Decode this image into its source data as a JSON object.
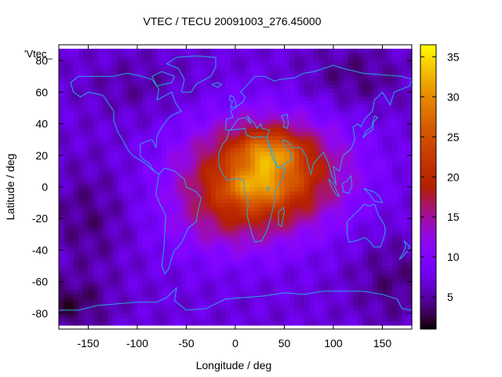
{
  "chart_data": {
    "type": "heatmap",
    "title": "VTEC / TECU 20091003_276.45000",
    "xlabel": "Longitude / deg",
    "ylabel": "Latitude / deg",
    "legend_label": "'Vtec_",
    "xlim": [
      -180,
      180
    ],
    "ylim": [
      -90,
      90
    ],
    "xticks": [
      -150,
      -100,
      -50,
      0,
      50,
      100,
      150
    ],
    "yticks": [
      -80,
      -60,
      -40,
      -20,
      0,
      20,
      40,
      60,
      80
    ],
    "colorbar": {
      "range": [
        1,
        36.5
      ],
      "ticks": [
        5,
        10,
        15,
        20,
        25,
        30,
        35
      ]
    },
    "field_model": {
      "background_tecu": 7,
      "anomalies": [
        {
          "lon": 30,
          "lat": 8,
          "lon_sigma": 55,
          "lat_sigma": 24,
          "amp": 19
        },
        {
          "lon": 35,
          "lat": 22,
          "lon_sigma": 22,
          "lat_sigma": 9,
          "amp": 9
        },
        {
          "lon": 20,
          "lat": 0,
          "lon_sigma": 22,
          "lat_sigma": 7,
          "amp": 6
        },
        {
          "lon": -15,
          "lat": -22,
          "lon_sigma": 45,
          "lat_sigma": 18,
          "amp": 4
        },
        {
          "lon": -150,
          "lat": -20,
          "lon_sigma": 30,
          "lat_sigma": 25,
          "amp": -3
        },
        {
          "lon": -170,
          "lat": -75,
          "lon_sigma": 30,
          "lat_sigma": 12,
          "amp": -4
        },
        {
          "lon": 160,
          "lat": -60,
          "lon_sigma": 30,
          "lat_sigma": 20,
          "amp": -3
        },
        {
          "lon": 120,
          "lat": 70,
          "lon_sigma": 40,
          "lat_sigma": 15,
          "amp": -3
        },
        {
          "lon": -100,
          "lat": 65,
          "lon_sigma": 40,
          "lat_sigma": 15,
          "amp": -2
        }
      ]
    },
    "coastlines": [
      {
        "name": "north-america",
        "points": [
          [
            -168,
            66
          ],
          [
            -160,
            70
          ],
          [
            -140,
            70
          ],
          [
            -125,
            70
          ],
          [
            -110,
            72
          ],
          [
            -95,
            70
          ],
          [
            -85,
            68
          ],
          [
            -78,
            62
          ],
          [
            -80,
            55
          ],
          [
            -65,
            60
          ],
          [
            -60,
            52
          ],
          [
            -55,
            48
          ],
          [
            -66,
            45
          ],
          [
            -70,
            42
          ],
          [
            -75,
            38
          ],
          [
            -80,
            32
          ],
          [
            -81,
            25
          ],
          [
            -85,
            30
          ],
          [
            -90,
            29
          ],
          [
            -97,
            27
          ],
          [
            -97,
            20
          ],
          [
            -95,
            18
          ],
          [
            -88,
            15
          ],
          [
            -83,
            10
          ],
          [
            -78,
            8
          ],
          [
            -85,
            11
          ],
          [
            -92,
            15
          ],
          [
            -105,
            20
          ],
          [
            -110,
            24
          ],
          [
            -115,
            30
          ],
          [
            -120,
            35
          ],
          [
            -124,
            42
          ],
          [
            -124,
            48
          ],
          [
            -135,
            58
          ],
          [
            -150,
            60
          ],
          [
            -158,
            57
          ],
          [
            -165,
            60
          ],
          [
            -168,
            66
          ]
        ]
      },
      {
        "name": "greenland",
        "points": [
          [
            -55,
            60
          ],
          [
            -45,
            60
          ],
          [
            -40,
            65
          ],
          [
            -25,
            70
          ],
          [
            -20,
            76
          ],
          [
            -20,
            82
          ],
          [
            -40,
            83
          ],
          [
            -60,
            82
          ],
          [
            -70,
            78
          ],
          [
            -58,
            75
          ],
          [
            -52,
            68
          ],
          [
            -55,
            60
          ]
        ]
      },
      {
        "name": "south-america",
        "points": [
          [
            -78,
            8
          ],
          [
            -72,
            12
          ],
          [
            -62,
            10
          ],
          [
            -52,
            5
          ],
          [
            -50,
            0
          ],
          [
            -40,
            -3
          ],
          [
            -35,
            -7
          ],
          [
            -38,
            -15
          ],
          [
            -40,
            -22
          ],
          [
            -48,
            -26
          ],
          [
            -53,
            -33
          ],
          [
            -58,
            -38
          ],
          [
            -62,
            -40
          ],
          [
            -65,
            -45
          ],
          [
            -68,
            -52
          ],
          [
            -72,
            -55
          ],
          [
            -75,
            -50
          ],
          [
            -73,
            -40
          ],
          [
            -72,
            -30
          ],
          [
            -71,
            -18
          ],
          [
            -76,
            -12
          ],
          [
            -81,
            -5
          ],
          [
            -80,
            0
          ],
          [
            -78,
            8
          ]
        ]
      },
      {
        "name": "eurasia",
        "points": [
          [
            -10,
            36
          ],
          [
            -9,
            43
          ],
          [
            -2,
            44
          ],
          [
            -5,
            48
          ],
          [
            2,
            51
          ],
          [
            8,
            54
          ],
          [
            10,
            57
          ],
          [
            5,
            60
          ],
          [
            10,
            63
          ],
          [
            20,
            70
          ],
          [
            30,
            70
          ],
          [
            40,
            67
          ],
          [
            45,
            68
          ],
          [
            60,
            69
          ],
          [
            70,
            72
          ],
          [
            80,
            73
          ],
          [
            100,
            77
          ],
          [
            110,
            75
          ],
          [
            130,
            72
          ],
          [
            150,
            71
          ],
          [
            170,
            70
          ],
          [
            180,
            68
          ],
          [
            178,
            64
          ],
          [
            162,
            60
          ],
          [
            158,
            52
          ],
          [
            150,
            60
          ],
          [
            142,
            55
          ],
          [
            140,
            48
          ],
          [
            132,
            43
          ],
          [
            128,
            38
          ],
          [
            125,
            40
          ],
          [
            120,
            38
          ],
          [
            122,
            30
          ],
          [
            118,
            24
          ],
          [
            110,
            20
          ],
          [
            106,
            10
          ],
          [
            100,
            13
          ],
          [
            103,
            1
          ],
          [
            98,
            8
          ],
          [
            95,
            15
          ],
          [
            90,
            22
          ],
          [
            80,
            15
          ],
          [
            77,
            8
          ],
          [
            72,
            20
          ],
          [
            66,
            25
          ],
          [
            57,
            25
          ],
          [
            56,
            27
          ],
          [
            50,
            30
          ],
          [
            48,
            29
          ],
          [
            52,
            24
          ],
          [
            56,
            22
          ],
          [
            58,
            18
          ],
          [
            52,
            15
          ],
          [
            43,
            12
          ],
          [
            39,
            21
          ],
          [
            34,
            28
          ],
          [
            32,
            31
          ],
          [
            35,
            36
          ],
          [
            27,
            37
          ],
          [
            26,
            40
          ],
          [
            22,
            37
          ],
          [
            20,
            40
          ],
          [
            12,
            45
          ],
          [
            16,
            40
          ],
          [
            10,
            44
          ],
          [
            3,
            43
          ],
          [
            -5,
            36
          ],
          [
            -10,
            36
          ]
        ]
      },
      {
        "name": "africa",
        "points": [
          [
            -6,
            36
          ],
          [
            10,
            37
          ],
          [
            11,
            33
          ],
          [
            20,
            31
          ],
          [
            25,
            32
          ],
          [
            32,
            31
          ],
          [
            34,
            27
          ],
          [
            38,
            18
          ],
          [
            43,
            12
          ],
          [
            51,
            12
          ],
          [
            48,
            5
          ],
          [
            40,
            -3
          ],
          [
            40,
            -10
          ],
          [
            35,
            -22
          ],
          [
            32,
            -28
          ],
          [
            27,
            -34
          ],
          [
            20,
            -35
          ],
          [
            17,
            -30
          ],
          [
            12,
            -18
          ],
          [
            13,
            -12
          ],
          [
            9,
            -1
          ],
          [
            9,
            4
          ],
          [
            5,
            5
          ],
          [
            -4,
            5
          ],
          [
            -8,
            4
          ],
          [
            -13,
            8
          ],
          [
            -17,
            14
          ],
          [
            -17,
            21
          ],
          [
            -13,
            27
          ],
          [
            -9,
            30
          ],
          [
            -6,
            36
          ]
        ]
      },
      {
        "name": "madagascar",
        "points": [
          [
            44,
            -16
          ],
          [
            49,
            -13
          ],
          [
            50,
            -16
          ],
          [
            47,
            -25
          ],
          [
            44,
            -24
          ],
          [
            44,
            -16
          ]
        ]
      },
      {
        "name": "australia",
        "points": [
          [
            114,
            -22
          ],
          [
            114,
            -30
          ],
          [
            116,
            -35
          ],
          [
            124,
            -34
          ],
          [
            132,
            -32
          ],
          [
            138,
            -35
          ],
          [
            141,
            -38
          ],
          [
            148,
            -38
          ],
          [
            151,
            -33
          ],
          [
            153,
            -28
          ],
          [
            152,
            -24
          ],
          [
            146,
            -18
          ],
          [
            142,
            -11
          ],
          [
            136,
            -12
          ],
          [
            131,
            -11
          ],
          [
            127,
            -14
          ],
          [
            122,
            -17
          ],
          [
            114,
            -22
          ]
        ]
      },
      {
        "name": "antarctica",
        "points": [
          [
            -180,
            -78
          ],
          [
            -160,
            -78
          ],
          [
            -140,
            -75
          ],
          [
            -120,
            -74
          ],
          [
            -100,
            -73
          ],
          [
            -80,
            -73
          ],
          [
            -70,
            -70
          ],
          [
            -60,
            -64
          ],
          [
            -62,
            -72
          ],
          [
            -50,
            -78
          ],
          [
            -30,
            -77
          ],
          [
            -10,
            -71
          ],
          [
            10,
            -70
          ],
          [
            30,
            -69
          ],
          [
            50,
            -67
          ],
          [
            70,
            -68
          ],
          [
            90,
            -66
          ],
          [
            110,
            -66
          ],
          [
            130,
            -66
          ],
          [
            150,
            -68
          ],
          [
            165,
            -71
          ],
          [
            170,
            -77
          ],
          [
            180,
            -78
          ]
        ]
      },
      {
        "name": "great-britain",
        "points": [
          [
            -5,
            50
          ],
          [
            1,
            51
          ],
          [
            0,
            54
          ],
          [
            -2,
            57
          ],
          [
            -5,
            58
          ],
          [
            -6,
            55
          ],
          [
            -3,
            54
          ],
          [
            -5,
            50
          ]
        ]
      },
      {
        "name": "japan",
        "points": [
          [
            130,
            31
          ],
          [
            135,
            34
          ],
          [
            140,
            36
          ],
          [
            141,
            41
          ],
          [
            145,
            44
          ],
          [
            142,
            45
          ],
          [
            139,
            38
          ],
          [
            133,
            35
          ],
          [
            130,
            31
          ]
        ]
      },
      {
        "name": "new-zealand",
        "points": [
          [
            172,
            -34
          ],
          [
            178,
            -38
          ],
          [
            175,
            -41
          ],
          [
            171,
            -44
          ],
          [
            167,
            -46
          ],
          [
            172,
            -41
          ],
          [
            174,
            -37
          ],
          [
            172,
            -34
          ]
        ]
      },
      {
        "name": "borneo",
        "points": [
          [
            109,
            2
          ],
          [
            114,
            4
          ],
          [
            118,
            7
          ],
          [
            119,
            1
          ],
          [
            116,
            -4
          ],
          [
            110,
            -3
          ],
          [
            109,
            2
          ]
        ]
      },
      {
        "name": "sumatra",
        "points": [
          [
            95,
            5
          ],
          [
            100,
            2
          ],
          [
            106,
            -6
          ],
          [
            103,
            -5
          ],
          [
            98,
            0
          ],
          [
            95,
            5
          ]
        ]
      },
      {
        "name": "new-guinea",
        "points": [
          [
            131,
            -1
          ],
          [
            141,
            -3
          ],
          [
            147,
            -6
          ],
          [
            150,
            -10
          ],
          [
            142,
            -9
          ],
          [
            136,
            -4
          ],
          [
            131,
            -1
          ]
        ]
      },
      {
        "name": "caspian-sea",
        "points": [
          [
            47,
            45
          ],
          [
            53,
            46
          ],
          [
            54,
            40
          ],
          [
            53,
            37
          ],
          [
            49,
            38
          ],
          [
            50,
            41
          ],
          [
            47,
            45
          ]
        ]
      },
      {
        "name": "lake-victoria",
        "points": [
          [
            32,
            -1
          ],
          [
            34,
            0
          ],
          [
            34,
            -2
          ],
          [
            32,
            -2
          ],
          [
            32,
            -1
          ]
        ]
      },
      {
        "name": "iceland",
        "points": [
          [
            -24,
            65
          ],
          [
            -18,
            66
          ],
          [
            -14,
            65
          ],
          [
            -18,
            63
          ],
          [
            -24,
            65
          ]
        ]
      },
      {
        "name": "baffin-island",
        "points": [
          [
            -80,
            64
          ],
          [
            -65,
            66
          ],
          [
            -62,
            70
          ],
          [
            -75,
            73
          ],
          [
            -85,
            70
          ],
          [
            -80,
            64
          ]
        ]
      }
    ]
  }
}
